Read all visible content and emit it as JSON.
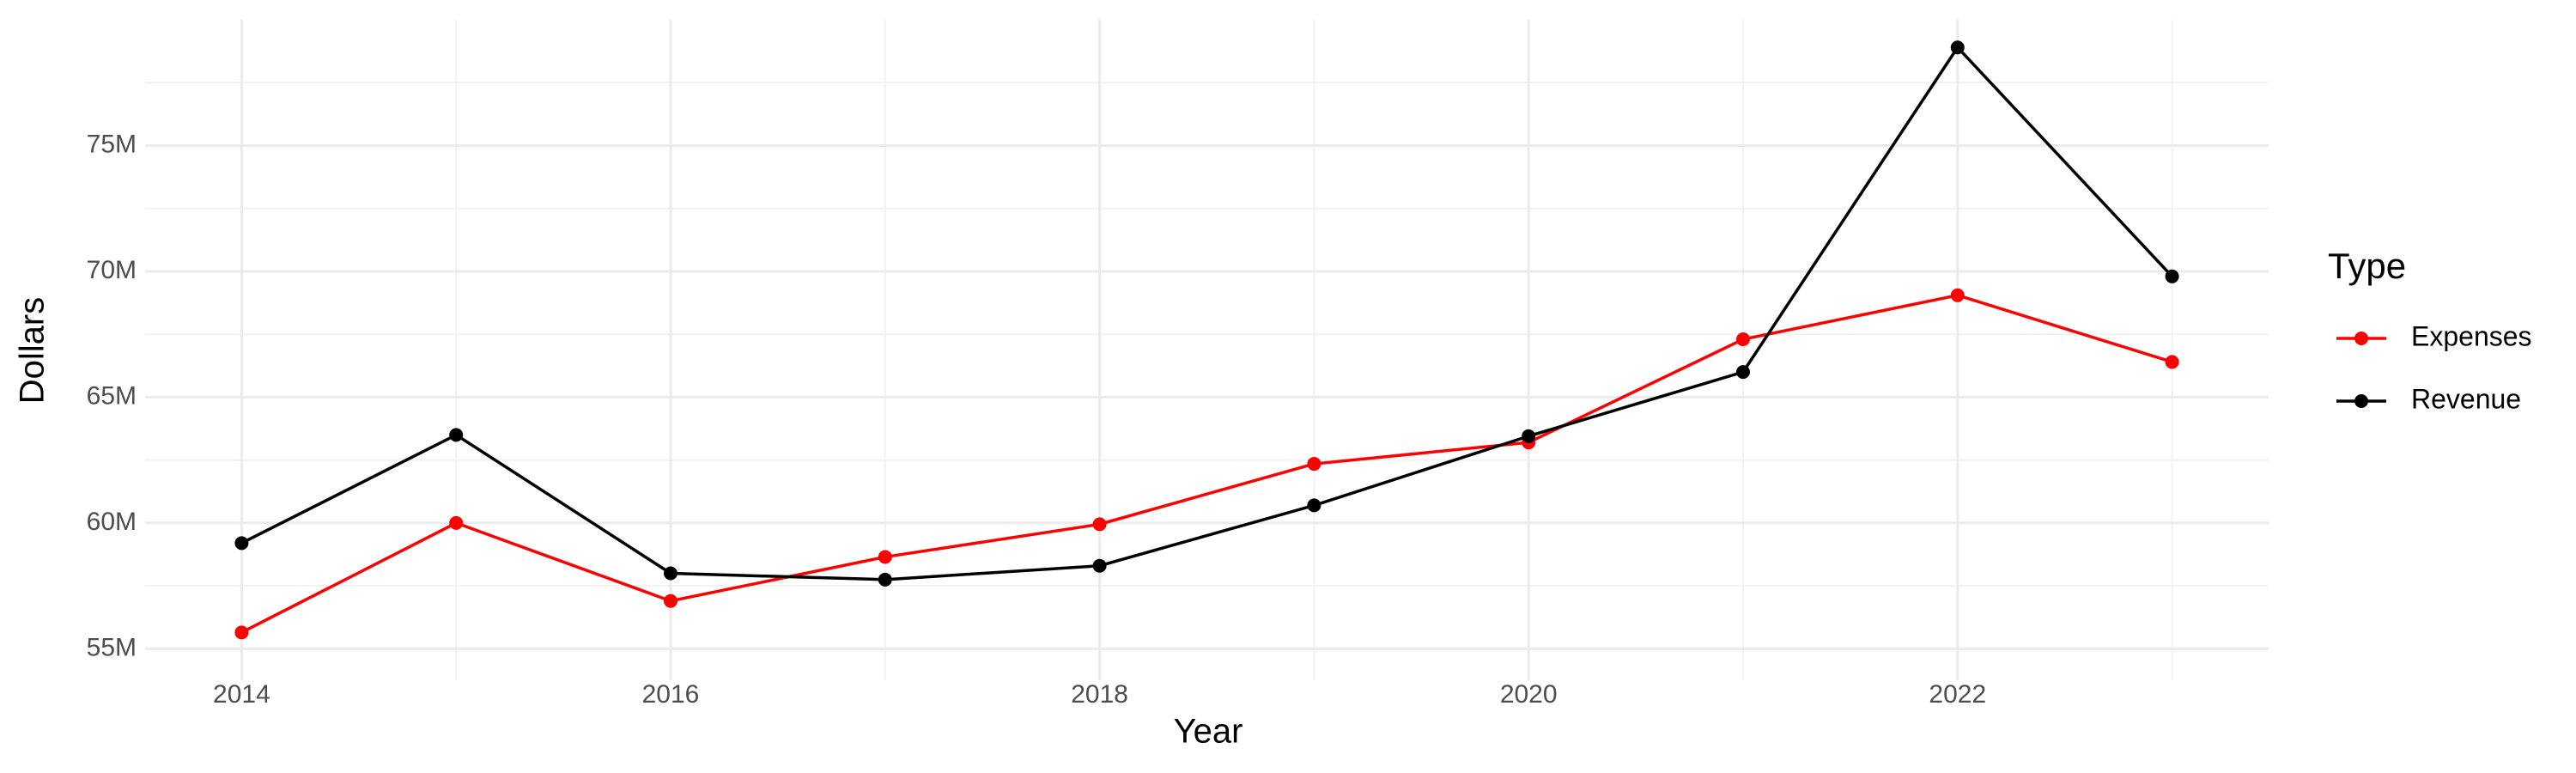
{
  "chart_data": {
    "type": "line",
    "x_label": "Year",
    "y_label": "Dollars",
    "legend_title": "Type",
    "x": [
      2014,
      2015,
      2016,
      2017,
      2018,
      2019,
      2020,
      2021,
      2022,
      2023
    ],
    "series": [
      {
        "name": "Expenses",
        "color": "#ff0000",
        "values": [
          55650000,
          60000000,
          56900000,
          58650000,
          59950000,
          62350000,
          63200000,
          67300000,
          69050000,
          66400000
        ]
      },
      {
        "name": "Revenue",
        "color": "#000000",
        "values": [
          59200000,
          63500000,
          58000000,
          57750000,
          58300000,
          60700000,
          63450000,
          66000000,
          78900000,
          69800000
        ]
      }
    ],
    "xlim": [
      2013.55,
      2023.45
    ],
    "xticks": [
      2014,
      2016,
      2018,
      2020,
      2022
    ],
    "ylim": [
      53750000,
      80000000
    ],
    "yticks": [
      {
        "value": 55000000,
        "label": "55M"
      },
      {
        "value": 60000000,
        "label": "60M"
      },
      {
        "value": 65000000,
        "label": "65M"
      },
      {
        "value": 70000000,
        "label": "70M"
      },
      {
        "value": 75000000,
        "label": "75M"
      }
    ],
    "grid": true,
    "legend_position": "right"
  }
}
